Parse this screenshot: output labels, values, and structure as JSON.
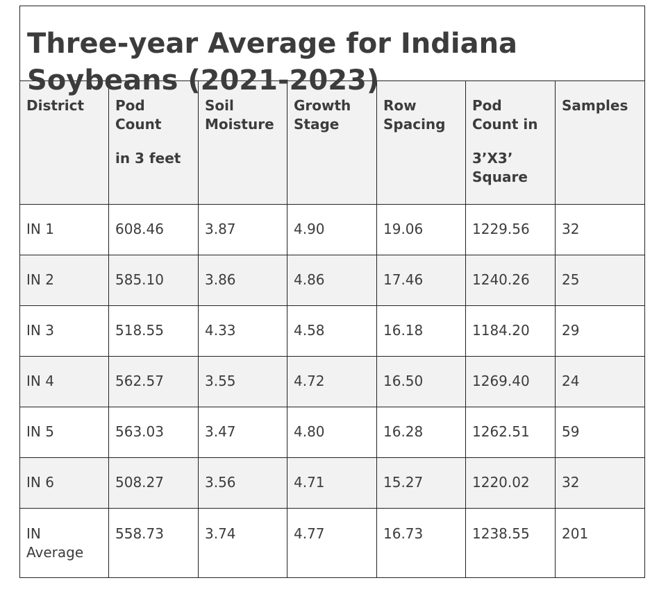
{
  "title_line1": "Three-year Average for Indiana",
  "title_line2": "Soybeans (2021-2023)",
  "headers": {
    "district": "District",
    "pod_count_line1": "Pod",
    "pod_count_line2": "Count",
    "pod_count_line3": "in 3 feet",
    "soil_line1": "Soil",
    "soil_line2": "Moisture",
    "growth_line1": "Growth",
    "growth_line2": "Stage",
    "row_line1": "Row",
    "row_line2": "Spacing",
    "square_line1": "Pod",
    "square_line2": "Count in",
    "square_line3": "3’X3’",
    "square_line4": "Square",
    "samples": "Samples"
  },
  "rows": [
    {
      "district": "IN 1",
      "pod_count": "608.46",
      "soil_moisture": "3.87",
      "growth_stage": "4.90",
      "row_spacing": "19.06",
      "pod_square": "1229.56",
      "samples": "32"
    },
    {
      "district": "IN 2",
      "pod_count": "585.10",
      "soil_moisture": "3.86",
      "growth_stage": "4.86",
      "row_spacing": "17.46",
      "pod_square": "1240.26",
      "samples": "25"
    },
    {
      "district": "IN 3",
      "pod_count": "518.55",
      "soil_moisture": "4.33",
      "growth_stage": "4.58",
      "row_spacing": "16.18",
      "pod_square": "1184.20",
      "samples": "29"
    },
    {
      "district": "IN 4",
      "pod_count": "562.57",
      "soil_moisture": "3.55",
      "growth_stage": "4.72",
      "row_spacing": "16.50",
      "pod_square": "1269.40",
      "samples": "24"
    },
    {
      "district": "IN 5",
      "pod_count": "563.03",
      "soil_moisture": "3.47",
      "growth_stage": "4.80",
      "row_spacing": "16.28",
      "pod_square": "1262.51",
      "samples": "59"
    },
    {
      "district": "IN 6",
      "pod_count": "508.27",
      "soil_moisture": "3.56",
      "growth_stage": "4.71",
      "row_spacing": "15.27",
      "pod_square": "1220.02",
      "samples": "32"
    },
    {
      "district_line1": "IN",
      "district_line2": "Average",
      "pod_count": "558.73",
      "soil_moisture": "3.74",
      "growth_stage": "4.77",
      "row_spacing": "16.73",
      "pod_square": "1238.55",
      "samples": "201"
    }
  ],
  "colors": {
    "text": "#3c3c3c",
    "header_bg": "#f2f2f2",
    "stripe_bg": "#f2f2f2",
    "border": "#222222"
  }
}
